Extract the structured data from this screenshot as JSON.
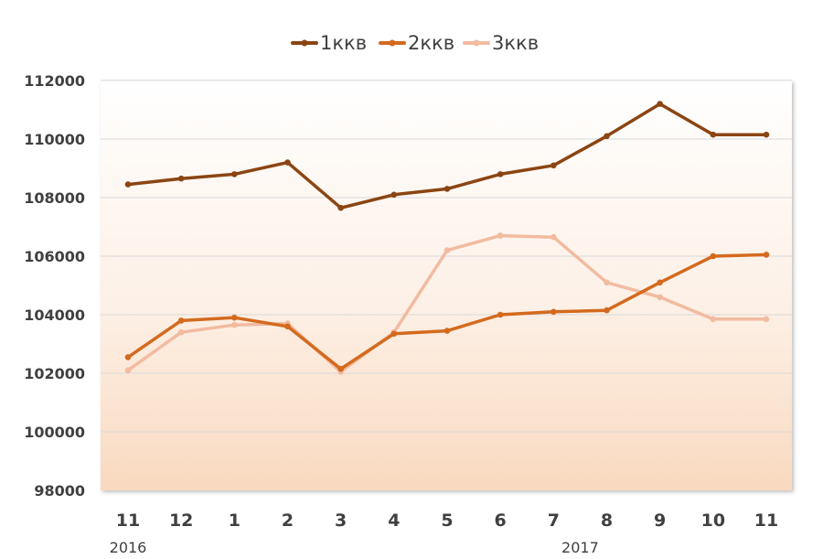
{
  "chart_data": {
    "type": "line",
    "categories": [
      "11",
      "12",
      "1",
      "2",
      "3",
      "4",
      "5",
      "6",
      "7",
      "8",
      "9",
      "10",
      "11"
    ],
    "year_labels": [
      {
        "text": "2016",
        "index": 0
      },
      {
        "text": "2017",
        "index": 8.5
      }
    ],
    "ylim": [
      98000,
      112000
    ],
    "yticks": [
      98000,
      100000,
      102000,
      104000,
      106000,
      108000,
      110000,
      112000
    ],
    "grid": true,
    "legend_position": "top-center",
    "series": [
      {
        "name": "1ккв",
        "color": "#8B4513",
        "values": [
          108450,
          108650,
          108800,
          109200,
          107650,
          108100,
          108300,
          108800,
          109100,
          110100,
          111200,
          110150,
          110150
        ]
      },
      {
        "name": "2ккв",
        "color": "#D46A1E",
        "values": [
          102550,
          103800,
          103900,
          103600,
          102150,
          103350,
          103450,
          104000,
          104100,
          104150,
          105100,
          106000,
          106050
        ]
      },
      {
        "name": "3ккв",
        "color": "#F2BBA0",
        "values": [
          102100,
          103400,
          103650,
          103700,
          102050,
          103400,
          106200,
          106700,
          106650,
          105100,
          104600,
          103850,
          103850
        ]
      }
    ]
  }
}
